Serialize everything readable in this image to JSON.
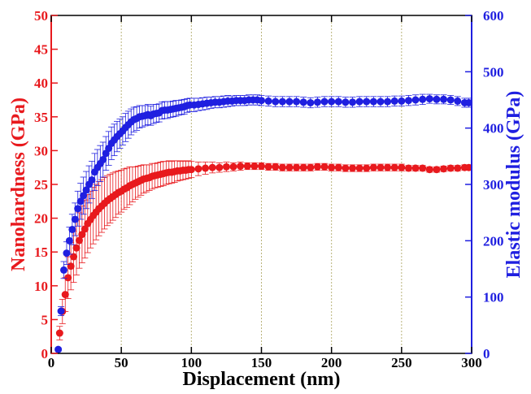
{
  "chart_data": {
    "type": "scatter",
    "xlabel": "Displacement (nm)",
    "ylabel_left": "Nanohardness (GPa)",
    "ylabel_right": "Elastic modulus (GPa)",
    "xlim": [
      0,
      300
    ],
    "ylim_left": [
      0,
      50
    ],
    "ylim_right": [
      0,
      600
    ],
    "x_ticks": [
      0,
      50,
      100,
      150,
      200,
      250,
      300
    ],
    "y_left_ticks": [
      0,
      5,
      10,
      15,
      20,
      25,
      30,
      35,
      40,
      45,
      50
    ],
    "y_right_ticks": [
      0,
      100,
      200,
      300,
      400,
      500,
      600
    ],
    "vertical_grid": [
      50,
      100,
      150,
      200,
      250
    ],
    "colors": {
      "left": "#e8191d",
      "right": "#1f1fe0"
    },
    "series": [
      {
        "axis": "left",
        "color": "#e8191d",
        "x": [
          6,
          8,
          10,
          12,
          14,
          16,
          18,
          20,
          22,
          24,
          26,
          28,
          30,
          32,
          34,
          36,
          38,
          40,
          42,
          44,
          46,
          48,
          50,
          52,
          54,
          56,
          58,
          60,
          62,
          64,
          66,
          68,
          70,
          72,
          74,
          76,
          78,
          80,
          82,
          84,
          86,
          88,
          90,
          92,
          94,
          96,
          98,
          100,
          105,
          110,
          115,
          120,
          125,
          130,
          135,
          140,
          145,
          150,
          155,
          160,
          165,
          170,
          175,
          180,
          185,
          190,
          195,
          200,
          205,
          210,
          215,
          220,
          225,
          230,
          235,
          240,
          245,
          250,
          255,
          260,
          265,
          270,
          275,
          280,
          285,
          290,
          295,
          298
        ],
        "y": [
          3.0,
          6.2,
          8.7,
          11.2,
          12.9,
          14.3,
          15.6,
          16.7,
          17.6,
          18.4,
          19.2,
          19.8,
          20.4,
          20.9,
          21.4,
          21.8,
          22.2,
          22.6,
          22.9,
          23.2,
          23.5,
          23.8,
          24.0,
          24.3,
          24.5,
          24.8,
          25.0,
          25.2,
          25.4,
          25.6,
          25.8,
          25.9,
          26.0,
          26.2,
          26.3,
          26.4,
          26.5,
          26.6,
          26.7,
          26.8,
          26.8,
          26.9,
          27.0,
          27.0,
          27.1,
          27.1,
          27.2,
          27.2,
          27.3,
          27.4,
          27.5,
          27.5,
          27.6,
          27.6,
          27.7,
          27.7,
          27.7,
          27.7,
          27.6,
          27.6,
          27.5,
          27.5,
          27.5,
          27.5,
          27.5,
          27.6,
          27.6,
          27.5,
          27.5,
          27.4,
          27.4,
          27.4,
          27.4,
          27.5,
          27.5,
          27.5,
          27.5,
          27.5,
          27.4,
          27.4,
          27.4,
          27.2,
          27.2,
          27.3,
          27.4,
          27.4,
          27.5,
          27.5
        ],
        "err": [
          1.0,
          1.8,
          2.5,
          3.1,
          3.5,
          3.8,
          4.0,
          4.1,
          4.2,
          4.3,
          4.3,
          4.2,
          4.2,
          4.1,
          4.0,
          3.9,
          3.8,
          3.7,
          3.6,
          3.5,
          3.4,
          3.2,
          3.1,
          3.0,
          2.9,
          2.8,
          2.6,
          2.4,
          2.3,
          2.2,
          2.1,
          2.0,
          1.9,
          1.9,
          1.8,
          1.8,
          1.8,
          1.8,
          1.7,
          1.7,
          1.6,
          1.6,
          1.5,
          1.4,
          1.4,
          1.3,
          1.3,
          1.2,
          1.0,
          0.9,
          0.8,
          0.7,
          0.7,
          0.6,
          0.6,
          0.5,
          0.5,
          0.5,
          0.5,
          0.5,
          0.5,
          0.5,
          0.5,
          0.5,
          0.5,
          0.5,
          0.5,
          0.5,
          0.5,
          0.5,
          0.5,
          0.5,
          0.5,
          0.5,
          0.5,
          0.5,
          0.5,
          0.5,
          0.4,
          0.4,
          0.4,
          0.4,
          0.4,
          0.4,
          0.4,
          0.4,
          0.4,
          0.4
        ]
      },
      {
        "axis": "right",
        "color": "#1f1fe0",
        "x": [
          5,
          7,
          9,
          11,
          13,
          15,
          17,
          19,
          21,
          23,
          25,
          27,
          29,
          31,
          33,
          35,
          37,
          39,
          41,
          43,
          45,
          47,
          49,
          51,
          53,
          55,
          57,
          59,
          61,
          63,
          65,
          67,
          69,
          71,
          73,
          75,
          77,
          79,
          81,
          83,
          85,
          87,
          89,
          91,
          93,
          95,
          97,
          99,
          102,
          105,
          108,
          111,
          114,
          117,
          120,
          123,
          126,
          129,
          132,
          135,
          138,
          141,
          144,
          147,
          150,
          155,
          160,
          165,
          170,
          175,
          180,
          185,
          190,
          195,
          200,
          205,
          210,
          215,
          220,
          225,
          230,
          235,
          240,
          245,
          250,
          255,
          260,
          265,
          270,
          275,
          280,
          285,
          290,
          295,
          298
        ],
        "y": [
          7,
          75,
          148,
          178,
          200,
          220,
          238,
          257,
          270,
          280,
          290,
          300,
          308,
          322,
          330,
          337,
          344,
          355,
          364,
          373,
          379,
          385,
          390,
          395,
          401,
          406,
          411,
          415,
          417,
          420,
          421,
          422,
          424,
          422,
          425,
          426,
          427,
          431,
          432,
          432,
          433,
          434,
          435,
          436,
          437,
          438,
          440,
          441,
          441,
          442,
          443,
          444,
          445,
          446,
          446,
          447,
          448,
          448,
          449,
          449,
          449,
          450,
          450,
          450,
          449,
          448,
          447,
          447,
          447,
          447,
          446,
          445,
          446,
          447,
          447,
          447,
          446,
          446,
          447,
          447,
          447,
          447,
          447,
          448,
          448,
          449,
          450,
          451,
          452,
          451,
          451,
          450,
          448,
          445,
          445
        ],
        "err": [
          3,
          8,
          15,
          20,
          24,
          27,
          29,
          31,
          32,
          33,
          33,
          33,
          33,
          33,
          32,
          32,
          31,
          30,
          30,
          29,
          28,
          27,
          26,
          25,
          25,
          24,
          23,
          22,
          21,
          20,
          19,
          18,
          18,
          17,
          17,
          16,
          16,
          15,
          15,
          15,
          14,
          14,
          14,
          13,
          13,
          13,
          12,
          12,
          12,
          11,
          11,
          11,
          10,
          10,
          10,
          10,
          10,
          9,
          9,
          9,
          9,
          9,
          9,
          9,
          9,
          9,
          9,
          9,
          9,
          9,
          9,
          9,
          9,
          9,
          9,
          9,
          9,
          9,
          9,
          9,
          9,
          9,
          9,
          9,
          9,
          9,
          9,
          9,
          8,
          8,
          8,
          8,
          8,
          8,
          8
        ]
      }
    ]
  }
}
